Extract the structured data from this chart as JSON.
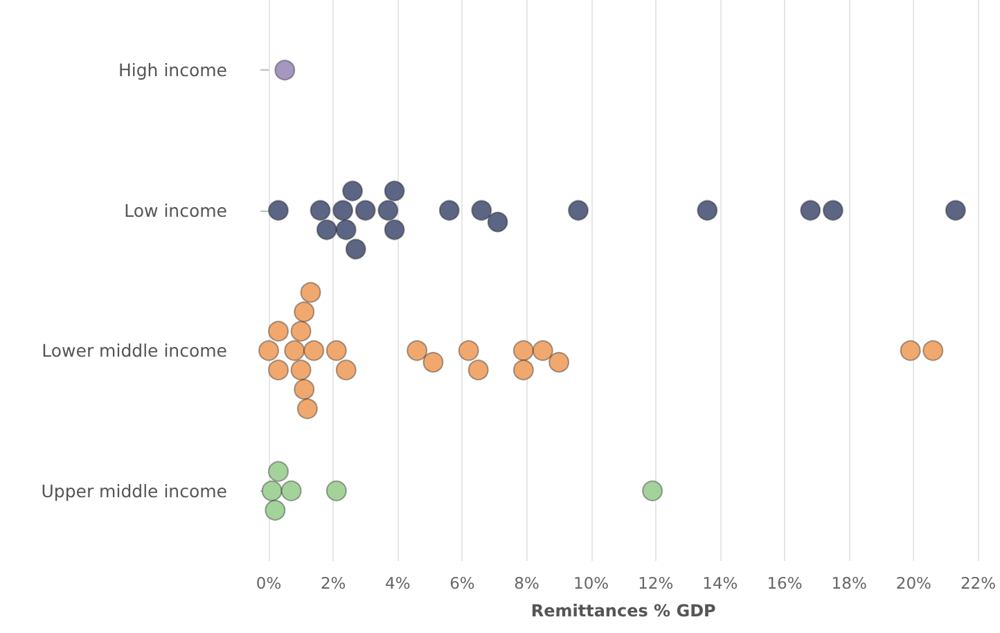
{
  "chart_data": {
    "type": "scatter",
    "orientation": "horizontal",
    "xlabel": "Remittances % GDP",
    "categories": [
      "High income",
      "Low income",
      "Lower middle income",
      "Upper middle income"
    ],
    "xlim": [
      0,
      22
    ],
    "xticks": [
      {
        "value": 0,
        "label": "0%"
      },
      {
        "value": 2,
        "label": "2%"
      },
      {
        "value": 4,
        "label": "4%"
      },
      {
        "value": 6,
        "label": "6%"
      },
      {
        "value": 8,
        "label": "8%"
      },
      {
        "value": 10,
        "label": "10%"
      },
      {
        "value": 12,
        "label": "12%"
      },
      {
        "value": 14,
        "label": "14%"
      },
      {
        "value": 16,
        "label": "16%"
      },
      {
        "value": 18,
        "label": "18%"
      },
      {
        "value": 20,
        "label": "20%"
      },
      {
        "value": 22,
        "label": "22%"
      }
    ],
    "grid": "x",
    "marker": "circle",
    "series": [
      {
        "color": "#a597c0",
        "x": [
          "High income"
        ],
        "values": [
          0.5
        ]
      },
      {
        "color": "#5d6584",
        "x": [
          "Low income",
          "Low income",
          "Low income",
          "Low income",
          "Low income",
          "Low income",
          "Low income",
          "Low income",
          "Low income",
          "Low income",
          "Low income",
          "Low income",
          "Low income",
          "Low income",
          "Low income",
          "Low income",
          "Low income",
          "Low income",
          "Low income"
        ],
        "values": [
          0.3,
          1.6,
          1.8,
          2.3,
          2.4,
          2.6,
          2.7,
          3.0,
          3.7,
          3.9,
          3.9,
          5.6,
          6.6,
          7.1,
          9.6,
          13.6,
          16.8,
          17.5,
          21.3
        ]
      },
      {
        "color": "#f0a86f",
        "x": [
          "Lower middle income",
          "Lower middle income",
          "Lower middle income",
          "Lower middle income",
          "Lower middle income",
          "Lower middle income",
          "Lower middle income",
          "Lower middle income",
          "Lower middle income",
          "Lower middle income",
          "Lower middle income",
          "Lower middle income",
          "Lower middle income",
          "Lower middle income",
          "Lower middle income",
          "Lower middle income",
          "Lower middle income",
          "Lower middle income",
          "Lower middle income",
          "Lower middle income",
          "Lower middle income",
          "Lower middle income",
          "Lower middle income"
        ],
        "values": [
          0.0,
          0.3,
          0.3,
          0.8,
          1.0,
          1.0,
          1.1,
          1.1,
          1.2,
          1.3,
          1.4,
          2.1,
          2.4,
          4.6,
          5.1,
          6.2,
          6.5,
          7.9,
          7.9,
          8.5,
          9.0,
          19.9,
          20.6
        ]
      },
      {
        "color": "#a3d39b",
        "x": [
          "Upper middle income",
          "Upper middle income",
          "Upper middle income",
          "Upper middle income",
          "Upper middle income",
          "Upper middle income"
        ],
        "values": [
          0.1,
          0.2,
          0.3,
          0.7,
          2.1,
          11.9
        ]
      }
    ]
  }
}
